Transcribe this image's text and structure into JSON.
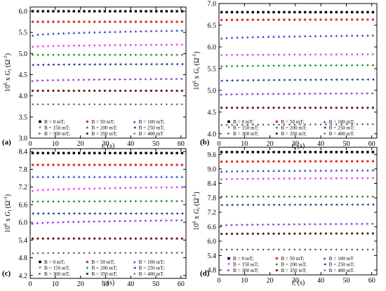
{
  "chart_data": [
    {
      "panel_label": "(a)",
      "type": "scatter",
      "xlabel": "t, (s)",
      "ylabel": "10^6 x G_t (Ω^-1)",
      "xlim": [
        0,
        62
      ],
      "ylim": [
        3.0,
        6.1
      ],
      "xticks": [
        0,
        10,
        20,
        30,
        40,
        50,
        60
      ],
      "yticks": [
        3.0,
        3.5,
        4.0,
        4.5,
        5.0,
        5.5,
        6.0
      ],
      "ytick_labels": [
        "3.0",
        "3.5",
        "4.0",
        "4.5",
        "5.0",
        "5.5",
        "6.0"
      ],
      "legend_position": "bottom",
      "series": [
        {
          "name": "B = 0 mT;",
          "color": "#000000",
          "marker": "square",
          "y_start": 6.0,
          "y_end": 6.0
        },
        {
          "name": "B = 50 mT;",
          "color": "#e03030",
          "marker": "circle",
          "y_start": 5.75,
          "y_end": 5.75
        },
        {
          "name": "B = 100 mT;",
          "color": "#2a3fd6",
          "marker": "triangle-up",
          "y_start": 5.43,
          "y_end": 5.55
        },
        {
          "name": "B = 150 mT;",
          "color": "#e832e8",
          "marker": "triangle-down",
          "y_start": 5.15,
          "y_end": 5.2
        },
        {
          "name": "B = 200 mT;",
          "color": "#1a8a1a",
          "marker": "diamond",
          "y_start": 4.97,
          "y_end": 4.97
        },
        {
          "name": "B = 250 mT;",
          "color": "#1b2a7a",
          "marker": "triangle-left",
          "y_start": 4.73,
          "y_end": 4.75
        },
        {
          "name": "B = 300 mT;",
          "color": "#8a2ae0",
          "marker": "triangle-right",
          "y_start": 4.35,
          "y_end": 4.4
        },
        {
          "name": "B = 350 mT;",
          "color": "#6a1a1a",
          "marker": "hexagon",
          "y_start": 4.12,
          "y_end": 4.12
        },
        {
          "name": "B = 400 mT",
          "color": "#404040",
          "marker": "star",
          "y_start": 3.8,
          "y_end": 3.8
        }
      ]
    },
    {
      "panel_label": "(b)",
      "type": "scatter",
      "xlabel": "t, (s)",
      "ylabel": "10^6 x G_t (Ω^-1)",
      "xlim": [
        0,
        62
      ],
      "ylim": [
        3.9,
        7.0
      ],
      "xticks": [
        0,
        10,
        20,
        30,
        40,
        50,
        60
      ],
      "yticks": [
        4.0,
        4.5,
        5.0,
        5.5,
        6.0,
        6.5,
        7.0
      ],
      "ytick_labels": [
        "4.0",
        "4.5",
        "5.0",
        "5.5",
        "6.0",
        "6.5",
        "7.0"
      ],
      "legend_position": "bottom",
      "series": [
        {
          "name": "B = 0 mT;",
          "color": "#000000",
          "marker": "square",
          "y_start": 6.8,
          "y_end": 6.8
        },
        {
          "name": "B = 50 mT;",
          "color": "#e03030",
          "marker": "circle",
          "y_start": 6.62,
          "y_end": 6.63
        },
        {
          "name": "B = 100 mT;",
          "color": "#2a3fd6",
          "marker": "triangle-up",
          "y_start": 6.2,
          "y_end": 6.27
        },
        {
          "name": "B = 150 mT;",
          "color": "#e832e8",
          "marker": "triangle-down",
          "y_start": 5.8,
          "y_end": 5.82
        },
        {
          "name": "B = 200 mT;",
          "color": "#1a8a1a",
          "marker": "diamond",
          "y_start": 5.55,
          "y_end": 5.58
        },
        {
          "name": "B = 250 mT;",
          "color": "#1b2a7a",
          "marker": "triangle-left",
          "y_start": 5.22,
          "y_end": 5.25
        },
        {
          "name": "B = 300 mT;",
          "color": "#8a2ae0",
          "marker": "triangle-right",
          "y_start": 4.9,
          "y_end": 4.93
        },
        {
          "name": "B = 350 mT;",
          "color": "#6a1a1a",
          "marker": "hexagon",
          "y_start": 4.6,
          "y_end": 4.6
        },
        {
          "name": "B = 400 mT.",
          "color": "#404040",
          "marker": "star",
          "y_start": 4.2,
          "y_end": 4.22
        }
      ]
    },
    {
      "panel_label": "(c)",
      "type": "scatter",
      "xlabel": "t, (s)",
      "ylabel": "10^6 x G_t (Ω^-1)",
      "xlim": [
        0,
        62
      ],
      "ylim": [
        4.1,
        8.5
      ],
      "xticks": [
        0,
        10,
        20,
        30,
        40,
        50,
        60
      ],
      "yticks": [
        4.2,
        4.8,
        5.4,
        6.0,
        6.6,
        7.2,
        7.8,
        8.4
      ],
      "ytick_labels": [
        "4.2",
        "4.8",
        "5.4",
        "6.0",
        "6.6",
        "7.2",
        "7.8",
        "8.4"
      ],
      "legend_position": "bottom",
      "series": [
        {
          "name": "B = 0 mT;",
          "color": "#000000",
          "marker": "square",
          "y_start": 8.35,
          "y_end": 8.35
        },
        {
          "name": "B = 50 mT;",
          "color": "#e03030",
          "marker": "circle",
          "y_start": 7.95,
          "y_end": 7.95
        },
        {
          "name": "B = 100 mT;",
          "color": "#2a3fd6",
          "marker": "triangle-up",
          "y_start": 7.55,
          "y_end": 7.55
        },
        {
          "name": "B = 150 mT;",
          "color": "#e832e8",
          "marker": "triangle-down",
          "y_start": 7.05,
          "y_end": 7.18
        },
        {
          "name": "B = 200 mT;",
          "color": "#1a8a1a",
          "marker": "diamond",
          "y_start": 6.7,
          "y_end": 6.72
        },
        {
          "name": "B = 250 mT;",
          "color": "#1b2a7a",
          "marker": "triangle-left",
          "y_start": 6.3,
          "y_end": 6.3
        },
        {
          "name": "B = 300 mT;",
          "color": "#8a2ae0",
          "marker": "triangle-right",
          "y_start": 5.95,
          "y_end": 6.07
        },
        {
          "name": "B = 350 mT;",
          "color": "#6a1a1a",
          "marker": "hexagon",
          "y_start": 5.45,
          "y_end": 5.45
        },
        {
          "name": "B = 400 mT.",
          "color": "#404040",
          "marker": "star",
          "y_start": 4.95,
          "y_end": 4.97
        }
      ]
    },
    {
      "panel_label": "(d)",
      "type": "scatter",
      "xlabel": "t, (s)",
      "ylabel": "10^6 x G_t (Ω^-1)",
      "xlim": [
        0,
        62
      ],
      "ylim": [
        4.6,
        9.9
      ],
      "xticks": [
        0,
        10,
        20,
        30,
        40,
        50,
        60
      ],
      "yticks": [
        4.8,
        5.4,
        6.0,
        6.6,
        7.2,
        7.8,
        8.4,
        9.0,
        9.6
      ],
      "ytick_labels": [
        "4.8",
        "5.4",
        "6.0",
        "6.6",
        "7.2",
        "7.8",
        "8.4",
        "9.0",
        "9.6"
      ],
      "legend_position": "bottom",
      "series": [
        {
          "name": "B = 0 mT;",
          "color": "#000000",
          "marker": "square",
          "y_start": 9.7,
          "y_end": 9.7
        },
        {
          "name": "B = 50 mT;",
          "color": "#e03030",
          "marker": "circle",
          "y_start": 9.3,
          "y_end": 9.32
        },
        {
          "name": "B = 100 mT",
          "color": "#2a3fd6",
          "marker": "triangle-up",
          "y_start": 8.9,
          "y_end": 8.95
        },
        {
          "name": "B = 150 mT;",
          "color": "#e832e8",
          "marker": "triangle-down",
          "y_start": 8.55,
          "y_end": 8.6
        },
        {
          "name": "B = 200 mT;",
          "color": "#1a8a1a",
          "marker": "diamond",
          "y_start": 7.85,
          "y_end": 7.85
        },
        {
          "name": "B = 250 mT;",
          "color": "#1b2a7a",
          "marker": "triangle-left",
          "y_start": 7.5,
          "y_end": 7.52
        },
        {
          "name": "B = 300 mT;",
          "color": "#8a2ae0",
          "marker": "triangle-right",
          "y_start": 6.65,
          "y_end": 6.72
        },
        {
          "name": "B = 350 mT;",
          "color": "#6a1a1a",
          "marker": "hexagon",
          "y_start": 6.3,
          "y_end": 6.32
        },
        {
          "name": "B = 400 mT.",
          "color": "#404040",
          "marker": "star",
          "y_start": 5.65,
          "y_end": 5.65
        }
      ]
    }
  ]
}
